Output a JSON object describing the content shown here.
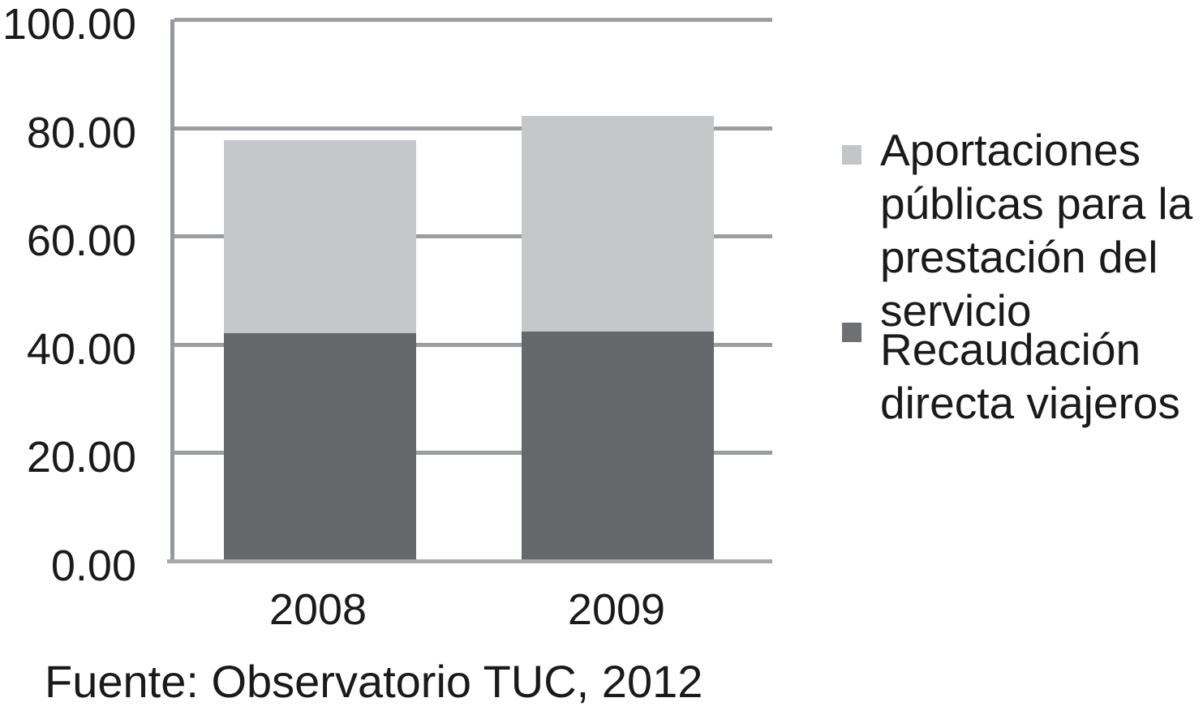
{
  "chart_data": {
    "type": "bar",
    "stacked": true,
    "orientation": "vertical",
    "title": "",
    "xlabel": "",
    "ylabel": "",
    "categories": [
      "2008",
      "2009"
    ],
    "series": [
      {
        "name": "Recaudación directa viajeros",
        "values": [
          42.0,
          42.3
        ],
        "color": "#66676b",
        "stack_position": "bottom"
      },
      {
        "name": "Aportaciones públicas para la prestación del servicio",
        "values": [
          35.7,
          39.8
        ],
        "color": "#c6c7c9",
        "stack_position": "top"
      }
    ],
    "stack_totals": [
      77.7,
      82.1
    ],
    "ylim": [
      0,
      100
    ],
    "yticks": [
      100,
      80,
      60,
      40,
      20,
      0
    ],
    "ytick_labels": [
      "100.00",
      "80.00",
      "60.00",
      "40.00",
      "20.00",
      "0.00"
    ],
    "grid": true,
    "gridline_color": "#9c9da1",
    "legend_position": "right",
    "source_note": "Fuente: Observatorio TUC, 2012"
  },
  "legend": {
    "items": [
      {
        "label": "Aportaciones públicas para la prestación del servicio",
        "swatch_color": "#c4c5c7"
      },
      {
        "label": "Recaudación directa viajeros",
        "swatch_color": "#6f7074"
      }
    ]
  },
  "axes": {
    "x_labels": [
      "2008",
      "2009"
    ],
    "y_labels": [
      "100.00",
      "80.00",
      "60.00",
      "40.00",
      "20.00",
      "0.00"
    ]
  },
  "source": {
    "text": "Fuente: Observatorio TUC, 2012"
  },
  "colors": {
    "background": "#ffffff",
    "text": "#1a1a1a",
    "axis_line": "#97989d",
    "gridline": "#9c9da1",
    "baseline": "#a7a8ab",
    "bar_light": "#c6c7c9",
    "bar_dark": "#66676b"
  }
}
